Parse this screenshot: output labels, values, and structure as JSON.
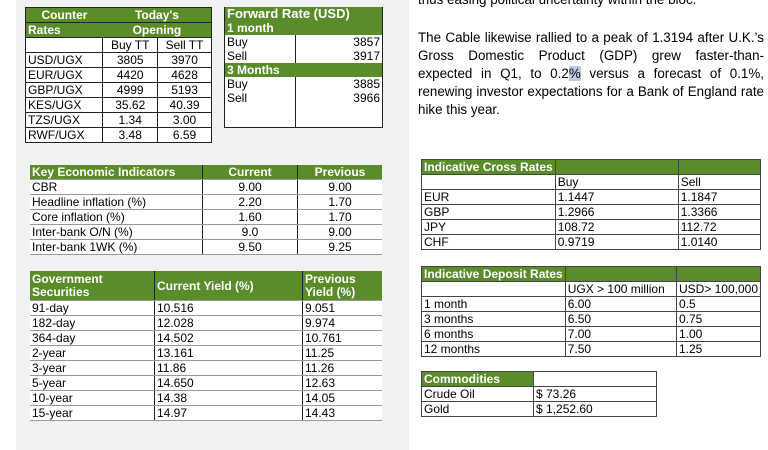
{
  "top_fragment": "thus easing political uncertainty within the bloc.",
  "paragraph": {
    "before": "The Cable likewise rallied to a peak of 1.3194 after U.K.’s Gross Domestic Product (GDP) grew faster-than-expected in Q1, to 0.2",
    "highlight": "%",
    "after": " versus a forecast of 0.1%, renewing investor expectations for a Bank of England rate hike this year."
  },
  "counter": {
    "h1a": "Counter",
    "h1b": "Today's",
    "h2a": "Rates",
    "h2b": "Opening",
    "buy": "Buy TT",
    "sell": "Sell TT",
    "rows": [
      [
        "USD/UGX",
        "3805",
        "3970"
      ],
      [
        "EUR/UGX",
        "4420",
        "4628"
      ],
      [
        "GBP/UGX",
        "4999",
        "5193"
      ],
      [
        "KES/UGX",
        "35.62",
        "40.39"
      ],
      [
        "TZS/UGX",
        "1.34",
        "3.00"
      ],
      [
        "RWF/UGX",
        "3.48",
        "6.59"
      ]
    ]
  },
  "forward": {
    "title": "Forward Rate (USD)",
    "p1": "1 month",
    "p1_buy_label": "Buy",
    "p1_buy": "3857",
    "p1_sell_label": "Sell",
    "p1_sell": "3917",
    "p2": "3 Months",
    "p2_buy_label": "Buy",
    "p2_buy": "3885",
    "p2_sell_label": "Sell",
    "p2_sell": "3966"
  },
  "kei": {
    "title": "Key Economic Indicators",
    "current": "Current",
    "previous": "Previous",
    "rows": [
      [
        "CBR",
        "9.00",
        "9.00"
      ],
      [
        "Headline inflation (%)",
        "2.20",
        "1.70"
      ],
      [
        "Core inflation (%)",
        "1.60",
        "1.70"
      ],
      [
        "Inter-bank O/N (%)",
        "9.0",
        "9.00"
      ],
      [
        "Inter-bank 1WK (%)",
        "9.50",
        "9.25"
      ]
    ]
  },
  "gov": {
    "title1": "Government",
    "title2": "Securities",
    "current": "Current Yield (%)",
    "prev1": "Previous",
    "prev2": "Yield (%)",
    "rows": [
      [
        "91-day",
        "10.516",
        "9.051"
      ],
      [
        "182-day",
        "12.028",
        "9.974"
      ],
      [
        "364-day",
        "14.502",
        "10.761"
      ],
      [
        "2-year",
        "13.161",
        "11.25"
      ],
      [
        "3-year",
        "11.86",
        "11.26"
      ],
      [
        "5-year",
        "14.650",
        "12.63"
      ],
      [
        "10-year",
        "14.38",
        "14.05"
      ],
      [
        "15-year",
        "14.97",
        "14.43"
      ]
    ]
  },
  "cross": {
    "title": "Indicative Cross Rates",
    "buy": "Buy",
    "sell": "Sell",
    "rows": [
      [
        "EUR",
        "1.1447",
        "1.1847"
      ],
      [
        "GBP",
        "1.2966",
        "1.3366"
      ],
      [
        "JPY",
        "108.72",
        "112.72"
      ],
      [
        "CHF",
        "0.9719",
        "1.0140"
      ]
    ]
  },
  "deposit": {
    "title": "Indicative Deposit Rates",
    "col1": "UGX > 100 million",
    "col2": "USD> 100,000",
    "rows": [
      [
        "1 month",
        "6.00",
        "0.5"
      ],
      [
        "3 months",
        "6.50",
        "0.75"
      ],
      [
        "6 months",
        "7.00",
        "1.00"
      ],
      [
        "12 months",
        "7.50",
        "1.25"
      ]
    ]
  },
  "commodities": {
    "title": "Commodities",
    "rows": [
      [
        "Crude Oil",
        "$ 73.26"
      ],
      [
        "Gold",
        "$ 1,252.60"
      ]
    ]
  },
  "colors": {
    "header_green": "#5b8c2a",
    "panel_gray": "#f2f2f2",
    "highlight": "#b8cce4"
  }
}
